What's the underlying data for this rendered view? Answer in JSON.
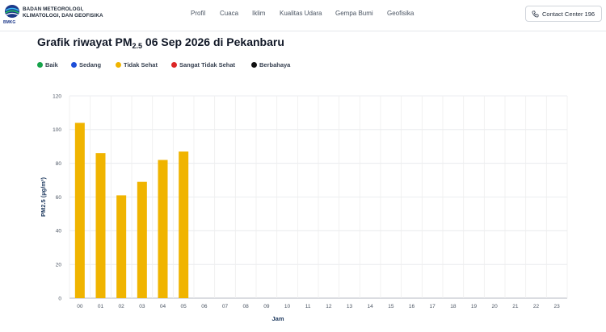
{
  "header": {
    "brand_line1": "BADAN METEOROLOGI,",
    "brand_line2": "KLIMATOLOGI, DAN GEOFISIKA",
    "logo_text": "BMKG",
    "nav": [
      "Profil",
      "Cuaca",
      "Iklim",
      "Kualitas Udara",
      "Gempa Bumi",
      "Geofisika"
    ],
    "contact_label": "Contact Center 196"
  },
  "page": {
    "title_prefix": "Grafik riwayat PM",
    "title_sub": "2.5",
    "title_suffix": " 06 Sep 2026 di Pekanbaru"
  },
  "legend": [
    {
      "label": "Baik",
      "color": "#16a34a"
    },
    {
      "label": "Sedang",
      "color": "#1d4ed8"
    },
    {
      "label": "Tidak Sehat",
      "color": "#f0b400"
    },
    {
      "label": "Sangat Tidak Sehat",
      "color": "#dc2626"
    },
    {
      "label": "Berbahaya",
      "color": "#111111"
    }
  ],
  "chart_data": {
    "type": "bar",
    "categories": [
      "00",
      "01",
      "02",
      "03",
      "04",
      "05",
      "06",
      "07",
      "08",
      "09",
      "10",
      "11",
      "12",
      "13",
      "14",
      "15",
      "16",
      "17",
      "18",
      "19",
      "20",
      "21",
      "22",
      "23"
    ],
    "values": [
      104,
      86,
      61,
      69,
      82,
      87,
      null,
      null,
      null,
      null,
      null,
      null,
      null,
      null,
      null,
      null,
      null,
      null,
      null,
      null,
      null,
      null,
      null,
      null
    ],
    "bar_color": "#f0b400",
    "ylim": [
      0,
      120
    ],
    "yticks": [
      0,
      20,
      40,
      60,
      80,
      100,
      120
    ],
    "xlabel": "Jam",
    "ylabel": "PM2.5 (µg/m³)",
    "grid": true
  }
}
